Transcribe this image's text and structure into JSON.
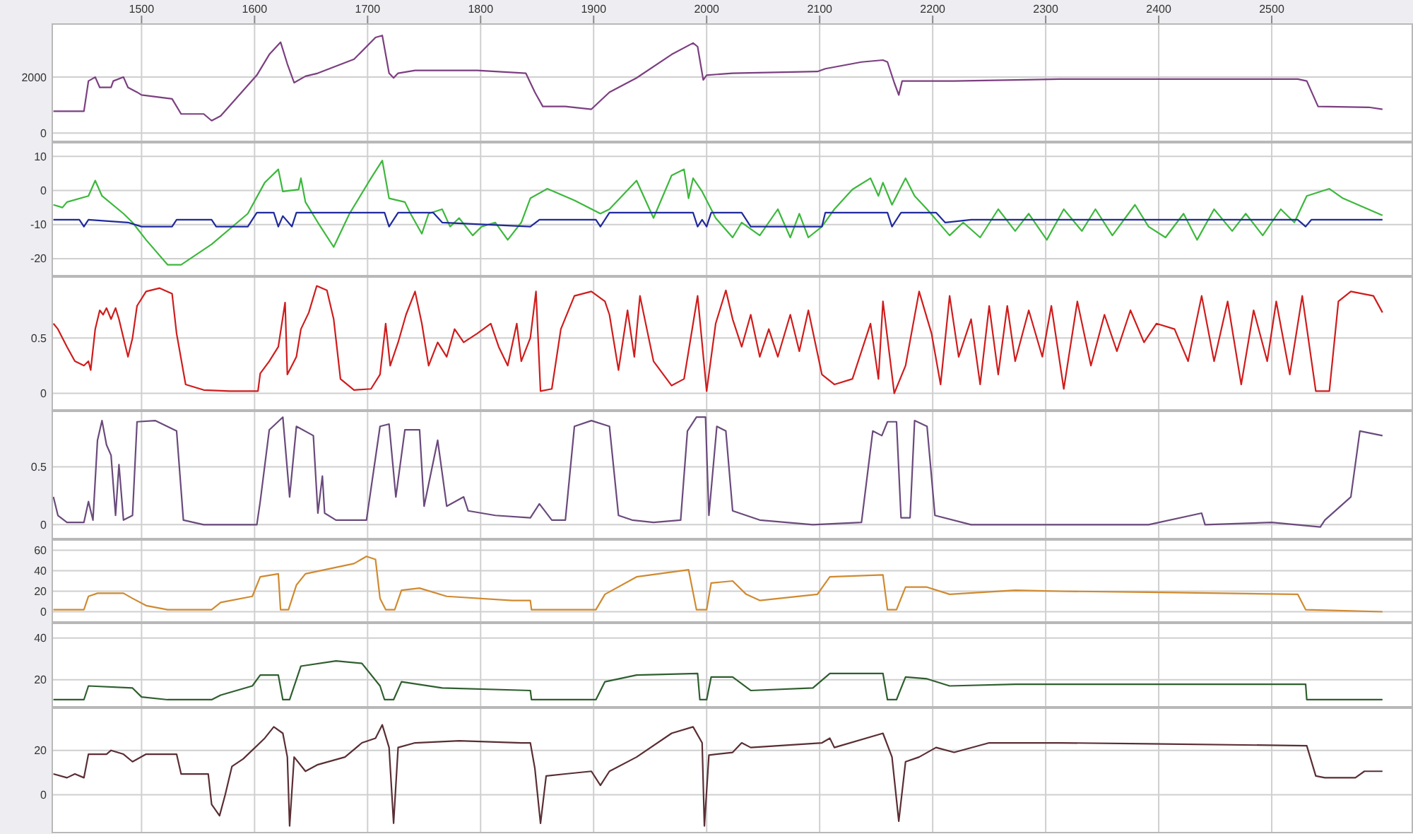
{
  "chart_data": [
    {
      "type": "line",
      "xlim": [
        1421,
        2625
      ],
      "xticks": [
        1500,
        1600,
        1700,
        1800,
        1900,
        2000,
        2100,
        2200,
        2300,
        2400,
        2500
      ],
      "ylim": [
        -300,
        3900
      ],
      "yticks": [
        0,
        2000
      ],
      "grid": true,
      "series": [
        {
          "color": "#7b3f80",
          "x": [
            1422,
            1449,
            1453,
            1459,
            1463,
            1473,
            1475,
            1484,
            1488,
            1496,
            1500,
            1527,
            1535,
            1555,
            1562,
            1570,
            1602,
            1613,
            1623,
            1629,
            1635,
            1645,
            1656,
            1688,
            1707,
            1713,
            1719,
            1723,
            1727,
            1742,
            1797,
            1840,
            1848,
            1855,
            1875,
            1898,
            1914,
            1938,
            1969,
            1988,
            1992,
            1997,
            2000,
            2023,
            2098,
            2105,
            2137,
            2156,
            2160,
            2166,
            2170,
            2173,
            2219,
            2273,
            2313,
            2352,
            2406,
            2523,
            2531,
            2541,
            2586,
            2598
          ],
          "values": [
            780,
            780,
            1860,
            2000,
            1630,
            1630,
            1860,
            2000,
            1630,
            1460,
            1360,
            1220,
            680,
            680,
            440,
            610,
            2070,
            2810,
            3250,
            2470,
            1800,
            2030,
            2140,
            2640,
            3420,
            3490,
            2140,
            1970,
            2140,
            2240,
            2240,
            2140,
            1460,
            950,
            950,
            850,
            1460,
            1970,
            2810,
            3220,
            3090,
            1900,
            2070,
            2140,
            2200,
            2300,
            2540,
            2610,
            2540,
            1800,
            1360,
            1860,
            1860,
            1900,
            1930,
            1930,
            1930,
            1930,
            1860,
            950,
            920,
            850
          ]
        }
      ]
    },
    {
      "type": "line",
      "xlim": [
        1421,
        2625
      ],
      "ylim": [
        -25,
        14
      ],
      "yticks": [
        -20,
        -10,
        0,
        10
      ],
      "grid": true,
      "tick_labels": "y",
      "series": [
        {
          "color": "#3cb83c",
          "x": [
            1422,
            1430,
            1434,
            1453,
            1459,
            1465,
            1484,
            1492,
            1504,
            1523,
            1535,
            1562,
            1594,
            1609,
            1621,
            1625,
            1639,
            1641,
            1645,
            1656,
            1670,
            1684,
            1703,
            1713,
            1719,
            1733,
            1738,
            1748,
            1754,
            1766,
            1773,
            1781,
            1793,
            1801,
            1813,
            1824,
            1836,
            1844,
            1859,
            1883,
            1906,
            1914,
            1938,
            1953,
            1969,
            1980,
            1984,
            1988,
            1996,
            2008,
            2023,
            2031,
            2047,
            2063,
            2074,
            2082,
            2090,
            2102,
            2113,
            2129,
            2145,
            2152,
            2156,
            2164,
            2176,
            2184,
            2195,
            2215,
            2227,
            2242,
            2258,
            2273,
            2285,
            2301,
            2316,
            2332,
            2344,
            2359,
            2379,
            2391,
            2406,
            2422,
            2434,
            2449,
            2465,
            2477,
            2492,
            2508,
            2520,
            2531,
            2551,
            2563,
            2598
          ],
          "values": [
            -4.2,
            -5,
            -3.4,
            -1.6,
            2.9,
            -1.6,
            -6.8,
            -9.4,
            -14.5,
            -21.8,
            -21.8,
            -15.8,
            -6.8,
            2.3,
            6.2,
            -0.3,
            0.3,
            3.6,
            -3.4,
            -9.4,
            -16.6,
            -6.8,
            3.6,
            8.8,
            -2.3,
            -3.4,
            -6.8,
            -12.7,
            -6.8,
            -5.5,
            -10.6,
            -8.1,
            -13.2,
            -10.6,
            -9.4,
            -14.5,
            -9.4,
            -2.3,
            0.5,
            -2.9,
            -6.8,
            -5.5,
            2.9,
            -8.1,
            4.4,
            6.2,
            -2.3,
            3.6,
            -0.3,
            -8.1,
            -13.8,
            -9.4,
            -13.2,
            -5.5,
            -13.8,
            -6.8,
            -13.8,
            -10.6,
            -5.5,
            0.3,
            3.6,
            -1.6,
            2.3,
            -4.2,
            3.6,
            -1.6,
            -5.5,
            -13.2,
            -9.4,
            -13.8,
            -5.5,
            -11.9,
            -6.8,
            -14.5,
            -5.5,
            -11.9,
            -5.5,
            -13.2,
            -4.2,
            -10.6,
            -13.8,
            -6.8,
            -14.5,
            -5.5,
            -11.9,
            -6.8,
            -13.2,
            -5.5,
            -9.4,
            -1.6,
            0.5,
            -2.3,
            -7.3
          ]
        },
        {
          "color": "#1f2a9c",
          "x": [
            1422,
            1445,
            1449,
            1453,
            1488,
            1500,
            1527,
            1531,
            1562,
            1566,
            1594,
            1602,
            1617,
            1621,
            1625,
            1633,
            1637,
            1715,
            1719,
            1727,
            1758,
            1766,
            1844,
            1852,
            1902,
            1906,
            1914,
            1988,
            1992,
            1996,
            2000,
            2004,
            2031,
            2039,
            2102,
            2105,
            2160,
            2164,
            2172,
            2203,
            2211,
            2234,
            2523,
            2530,
            2535,
            2598
          ],
          "values": [
            -8.6,
            -8.6,
            -10.6,
            -8.6,
            -9.4,
            -10.6,
            -10.6,
            -8.6,
            -8.6,
            -10.6,
            -10.6,
            -6.5,
            -6.5,
            -10.6,
            -7.5,
            -10.6,
            -6.5,
            -6.5,
            -10.6,
            -6.5,
            -6.5,
            -9.4,
            -10.6,
            -8.6,
            -8.6,
            -10.6,
            -6.5,
            -6.5,
            -10.6,
            -8.6,
            -10.6,
            -6.5,
            -6.5,
            -10.6,
            -10.6,
            -6.5,
            -6.5,
            -10.6,
            -6.5,
            -6.5,
            -9.4,
            -8.6,
            -8.6,
            -10.6,
            -8.6,
            -8.6
          ]
        }
      ]
    },
    {
      "type": "line",
      "xlim": [
        1421,
        2625
      ],
      "ylim": [
        -0.15,
        1.05
      ],
      "yticks": [
        0,
        0.5
      ],
      "grid": true,
      "tick_labels": "y",
      "series": [
        {
          "color": "#d01c1c",
          "x": [
            1422,
            1426,
            1434,
            1441,
            1449,
            1453,
            1455,
            1459,
            1463,
            1466,
            1469,
            1473,
            1477,
            1480,
            1484,
            1488,
            1492,
            1496,
            1504,
            1516,
            1527,
            1531,
            1539,
            1555,
            1578,
            1603,
            1605,
            1613,
            1621,
            1627,
            1629,
            1637,
            1641,
            1648,
            1655,
            1664,
            1670,
            1676,
            1688,
            1703,
            1711,
            1716,
            1720,
            1727,
            1734,
            1742,
            1748,
            1754,
            1762,
            1770,
            1777,
            1785,
            1797,
            1809,
            1816,
            1824,
            1832,
            1836,
            1844,
            1849,
            1853,
            1863,
            1871,
            1883,
            1898,
            1910,
            1914,
            1922,
            1930,
            1936,
            1941,
            1953,
            1969,
            1980,
            1988,
            1992,
            2000,
            2008,
            2017,
            2023,
            2031,
            2039,
            2047,
            2055,
            2063,
            2074,
            2082,
            2090,
            2102,
            2113,
            2129,
            2145,
            2152,
            2156,
            2166,
            2176,
            2188,
            2199,
            2207,
            2215,
            2223,
            2234,
            2242,
            2250,
            2258,
            2266,
            2273,
            2285,
            2297,
            2305,
            2316,
            2328,
            2340,
            2352,
            2363,
            2375,
            2387,
            2398,
            2414,
            2426,
            2438,
            2449,
            2461,
            2473,
            2484,
            2496,
            2504,
            2516,
            2527,
            2539,
            2551,
            2559,
            2570,
            2590,
            2598
          ],
          "values": [
            0.63,
            0.58,
            0.42,
            0.29,
            0.25,
            0.29,
            0.21,
            0.58,
            0.75,
            0.71,
            0.77,
            0.67,
            0.77,
            0.67,
            0.5,
            0.33,
            0.5,
            0.79,
            0.92,
            0.95,
            0.9,
            0.54,
            0.08,
            0.03,
            0.02,
            0.02,
            0.18,
            0.29,
            0.42,
            0.82,
            0.17,
            0.33,
            0.58,
            0.73,
            0.97,
            0.93,
            0.67,
            0.13,
            0.03,
            0.04,
            0.17,
            0.63,
            0.25,
            0.46,
            0.71,
            0.92,
            0.63,
            0.25,
            0.46,
            0.33,
            0.58,
            0.46,
            0.54,
            0.63,
            0.42,
            0.25,
            0.63,
            0.29,
            0.5,
            0.92,
            0.02,
            0.04,
            0.58,
            0.88,
            0.92,
            0.83,
            0.71,
            0.21,
            0.75,
            0.33,
            0.88,
            0.29,
            0.07,
            0.13,
            0.63,
            0.88,
            0.02,
            0.63,
            0.93,
            0.67,
            0.42,
            0.71,
            0.33,
            0.58,
            0.33,
            0.71,
            0.38,
            0.75,
            0.17,
            0.08,
            0.13,
            0.63,
            0.13,
            0.83,
            0,
            0.25,
            0.92,
            0.54,
            0.08,
            0.88,
            0.33,
            0.67,
            0.08,
            0.79,
            0.17,
            0.79,
            0.29,
            0.75,
            0.33,
            0.79,
            0.04,
            0.83,
            0.25,
            0.71,
            0.38,
            0.75,
            0.46,
            0.63,
            0.58,
            0.29,
            0.88,
            0.29,
            0.83,
            0.08,
            0.75,
            0.29,
            0.83,
            0.17,
            0.88,
            0.02,
            0.02,
            0.83,
            0.92,
            0.88,
            0.73
          ]
        }
      ]
    },
    {
      "type": "line",
      "xlim": [
        1421,
        2625
      ],
      "ylim": [
        -0.12,
        0.98
      ],
      "yticks": [
        0,
        0.5
      ],
      "grid": true,
      "tick_labels": "y",
      "series": [
        {
          "color": "#6a4a7c",
          "x": [
            1422,
            1426,
            1434,
            1449,
            1453,
            1457,
            1461,
            1465,
            1469,
            1473,
            1477,
            1480,
            1484,
            1492,
            1496,
            1512,
            1531,
            1537,
            1555,
            1602,
            1605,
            1613,
            1625,
            1631,
            1637,
            1652,
            1656,
            1660,
            1662,
            1672,
            1699,
            1711,
            1719,
            1725,
            1733,
            1746,
            1750,
            1762,
            1770,
            1785,
            1789,
            1813,
            1844,
            1852,
            1863,
            1875,
            1883,
            1898,
            1914,
            1922,
            1934,
            1953,
            1977,
            1983,
            1991,
            1999,
            2002,
            2009,
            2017,
            2023,
            2047,
            2094,
            2137,
            2147,
            2155,
            2160,
            2168,
            2172,
            2180,
            2184,
            2195,
            2202,
            2234,
            2313,
            2391,
            2438,
            2441,
            2500,
            2543,
            2547,
            2570,
            2578,
            2598
          ],
          "values": [
            0.24,
            0.08,
            0.02,
            0.02,
            0.2,
            0.04,
            0.73,
            0.9,
            0.69,
            0.6,
            0.08,
            0.52,
            0.04,
            0.08,
            0.89,
            0.9,
            0.81,
            0.04,
            0,
            0,
            0.2,
            0.82,
            0.93,
            0.24,
            0.85,
            0.77,
            0.1,
            0.42,
            0.1,
            0.04,
            0.04,
            0.85,
            0.87,
            0.24,
            0.82,
            0.82,
            0.16,
            0.73,
            0.16,
            0.24,
            0.12,
            0.08,
            0.06,
            0.18,
            0.04,
            0.04,
            0.85,
            0.9,
            0.85,
            0.08,
            0.04,
            0.02,
            0.04,
            0.81,
            0.93,
            0.93,
            0.08,
            0.85,
            0.81,
            0.12,
            0.04,
            0,
            0.02,
            0.81,
            0.77,
            0.89,
            0.89,
            0.06,
            0.06,
            0.9,
            0.85,
            0.08,
            0,
            0,
            0,
            0.1,
            0,
            0.02,
            -0.02,
            0.04,
            0.24,
            0.81,
            0.77
          ]
        }
      ]
    },
    {
      "type": "line",
      "xlim": [
        1421,
        2625
      ],
      "ylim": [
        -10,
        70
      ],
      "yticks": [
        0,
        20,
        40,
        60
      ],
      "grid": true,
      "tick_labels": "y",
      "series": [
        {
          "color": "#d08a30",
          "x": [
            1422,
            1449,
            1453,
            1461,
            1484,
            1492,
            1504,
            1523,
            1562,
            1570,
            1598,
            1605,
            1621,
            1623,
            1630,
            1637,
            1645,
            1688,
            1699,
            1707,
            1711,
            1716,
            1724,
            1730,
            1746,
            1770,
            1828,
            1844,
            1845,
            1902,
            1910,
            1938,
            1984,
            1991,
            2000,
            2004,
            2023,
            2035,
            2047,
            2098,
            2109,
            2156,
            2160,
            2168,
            2176,
            2195,
            2215,
            2273,
            2313,
            2391,
            2523,
            2530,
            2598
          ],
          "values": [
            2,
            2,
            15,
            18,
            18,
            13,
            6,
            2,
            2,
            9,
            15,
            34,
            37,
            2,
            2,
            26,
            37,
            47,
            54,
            51,
            13,
            2,
            2,
            21,
            23,
            15,
            11,
            11,
            2,
            2,
            17,
            34,
            41,
            2,
            2,
            28,
            30,
            17,
            11,
            17,
            34,
            36,
            2,
            2,
            24,
            24,
            17,
            21,
            20,
            19,
            17,
            2,
            0
          ]
        }
      ]
    },
    {
      "type": "line",
      "xlim": [
        1421,
        2625
      ],
      "ylim": [
        7,
        47
      ],
      "yticks": [
        20,
        40
      ],
      "grid": true,
      "tick_labels": "y",
      "series": [
        {
          "color": "#2f5f2f",
          "x": [
            1422,
            1449,
            1453,
            1492,
            1500,
            1523,
            1562,
            1570,
            1598,
            1605,
            1621,
            1625,
            1631,
            1641,
            1672,
            1695,
            1711,
            1715,
            1723,
            1730,
            1766,
            1844,
            1845,
            1902,
            1910,
            1938,
            1992,
            1994,
            2000,
            2004,
            2023,
            2039,
            2094,
            2109,
            2156,
            2160,
            2168,
            2176,
            2195,
            2215,
            2273,
            2530,
            2531,
            2598
          ],
          "values": [
            10.4,
            10.4,
            17,
            16,
            11.7,
            10.4,
            10.4,
            12.6,
            17,
            22.2,
            22.2,
            10.4,
            10.4,
            26.5,
            29,
            27.8,
            17,
            10.4,
            10.4,
            19,
            16,
            14.8,
            10.4,
            10.4,
            19,
            22.2,
            23,
            10.4,
            10.4,
            21.3,
            21.3,
            14.8,
            16,
            23,
            23,
            10.4,
            10.4,
            21.3,
            20.4,
            17,
            17.8,
            17.8,
            10.4,
            10.4
          ]
        }
      ]
    },
    {
      "type": "line",
      "xlim": [
        1421,
        2625
      ],
      "ylim": [
        -17,
        39
      ],
      "yticks": [
        0,
        20
      ],
      "grid": true,
      "tick_labels": "y",
      "series": [
        {
          "color": "#5a2e34",
          "x": [
            1422,
            1434,
            1441,
            1449,
            1453,
            1469,
            1473,
            1484,
            1492,
            1504,
            1531,
            1535,
            1559,
            1562,
            1569,
            1574,
            1580,
            1590,
            1609,
            1617,
            1625,
            1629,
            1631,
            1635,
            1645,
            1656,
            1680,
            1695,
            1707,
            1713,
            1719,
            1723,
            1727,
            1742,
            1781,
            1836,
            1844,
            1848,
            1853,
            1858,
            1875,
            1898,
            1906,
            1914,
            1938,
            1969,
            1988,
            1996,
            1998,
            2002,
            2023,
            2031,
            2039,
            2102,
            2109,
            2113,
            2156,
            2164,
            2170,
            2176,
            2188,
            2203,
            2219,
            2250,
            2313,
            2391,
            2531,
            2539,
            2547,
            2574,
            2582,
            2598
          ],
          "values": [
            9.4,
            7.7,
            9.4,
            7.7,
            18.3,
            18.3,
            20,
            18.3,
            14.9,
            18.3,
            18.3,
            9.4,
            9.4,
            -4.3,
            -9.4,
            0,
            12.8,
            16.2,
            25.5,
            30.6,
            27.7,
            17,
            -14,
            17,
            10.6,
            13.6,
            17,
            23.4,
            25.5,
            31.5,
            21.3,
            -12.8,
            21.3,
            23.4,
            24.3,
            23.4,
            23.4,
            11.9,
            -12.8,
            8.5,
            9.4,
            10.6,
            4.3,
            10.6,
            17,
            27.7,
            30.6,
            23.4,
            -14,
            17.9,
            19.1,
            23.4,
            21.3,
            23.4,
            25.5,
            21.3,
            27.7,
            17,
            -11.9,
            14.9,
            17,
            21.3,
            19.1,
            23.4,
            23.4,
            23,
            22.1,
            8.5,
            7.7,
            7.7,
            10.6,
            10.6
          ]
        }
      ]
    }
  ]
}
